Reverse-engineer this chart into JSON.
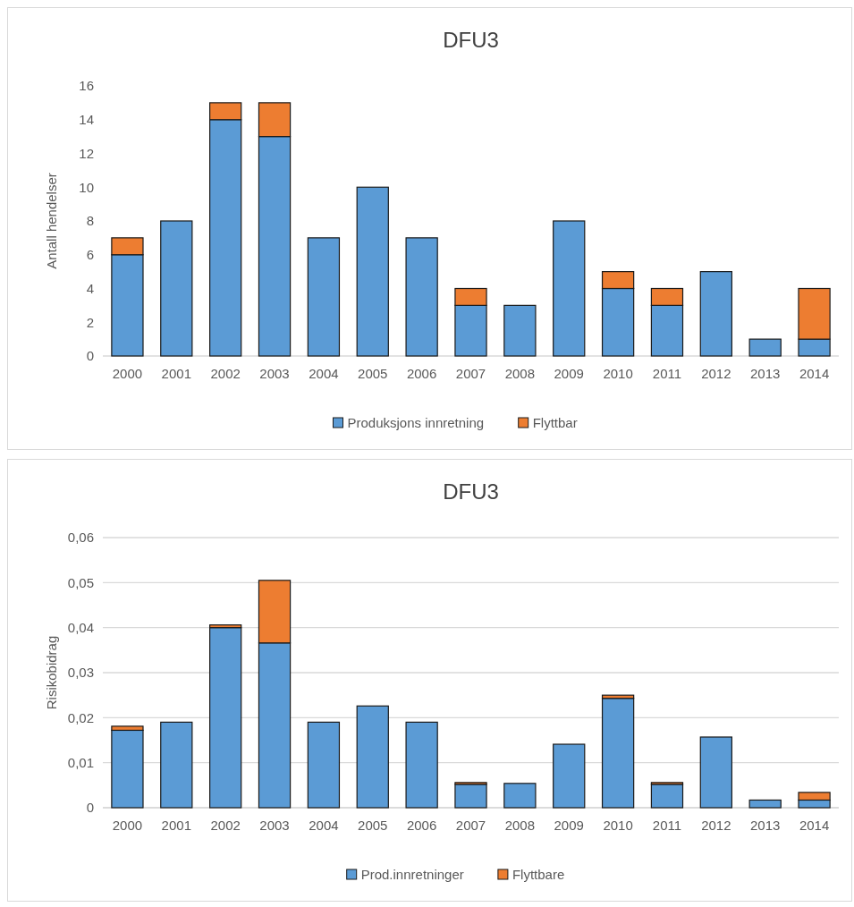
{
  "chart_data": [
    {
      "type": "bar",
      "title": "DFU3",
      "ylabel": "Antall hendelser",
      "stacked": true,
      "categories": [
        "2000",
        "2001",
        "2002",
        "2003",
        "2004",
        "2005",
        "2006",
        "2007",
        "2008",
        "2009",
        "2010",
        "2011",
        "2012",
        "2013",
        "2014"
      ],
      "series": [
        {
          "name": "Produksjons innretning",
          "color": "#5b9bd5",
          "values": [
            6,
            8,
            14,
            13,
            7,
            10,
            7,
            3,
            3,
            8,
            4,
            3,
            5,
            1,
            1
          ]
        },
        {
          "name": "Flyttbar",
          "color": "#ed7d31",
          "values": [
            1,
            null,
            1,
            2,
            null,
            null,
            null,
            1,
            null,
            null,
            1,
            1,
            null,
            null,
            3
          ]
        }
      ],
      "ylim": [
        0,
        16
      ],
      "yticks": [
        0,
        2,
        4,
        6,
        8,
        10,
        12,
        14,
        16
      ],
      "grid": false,
      "legend": "bottom"
    },
    {
      "type": "bar",
      "title": "DFU3",
      "ylabel": "Risikobidrag",
      "stacked": true,
      "categories": [
        "2000",
        "2001",
        "2002",
        "2003",
        "2004",
        "2005",
        "2006",
        "2007",
        "2008",
        "2009",
        "2010",
        "2011",
        "2012",
        "2013",
        "2014"
      ],
      "series": [
        {
          "name": "Prod.innretninger",
          "color": "#5b9bd5",
          "values": [
            0.0172,
            0.019,
            0.04,
            0.0366,
            0.019,
            0.0226,
            0.019,
            0.0052,
            0.0054,
            0.0141,
            0.0243,
            0.0052,
            0.0157,
            0.0017,
            0.0017
          ]
        },
        {
          "name": "Flyttbare",
          "color": "#ed7d31",
          "values": [
            0.0009,
            null,
            0.0006,
            0.0139,
            null,
            null,
            null,
            0.0004,
            null,
            null,
            0.0007,
            0.0004,
            null,
            null,
            0.0017
          ]
        }
      ],
      "ylim": [
        0,
        0.06
      ],
      "yticks": [
        0,
        {
          "value": 0.01,
          "label": "0,01"
        },
        {
          "value": 0.02,
          "label": "0,02"
        },
        {
          "value": 0.03,
          "label": "0,03"
        },
        {
          "value": 0.04,
          "label": "0,04"
        },
        {
          "value": 0.05,
          "label": "0,05"
        },
        {
          "value": 0.06,
          "label": "0,06"
        }
      ],
      "grid": "y",
      "legend": "bottom"
    }
  ]
}
